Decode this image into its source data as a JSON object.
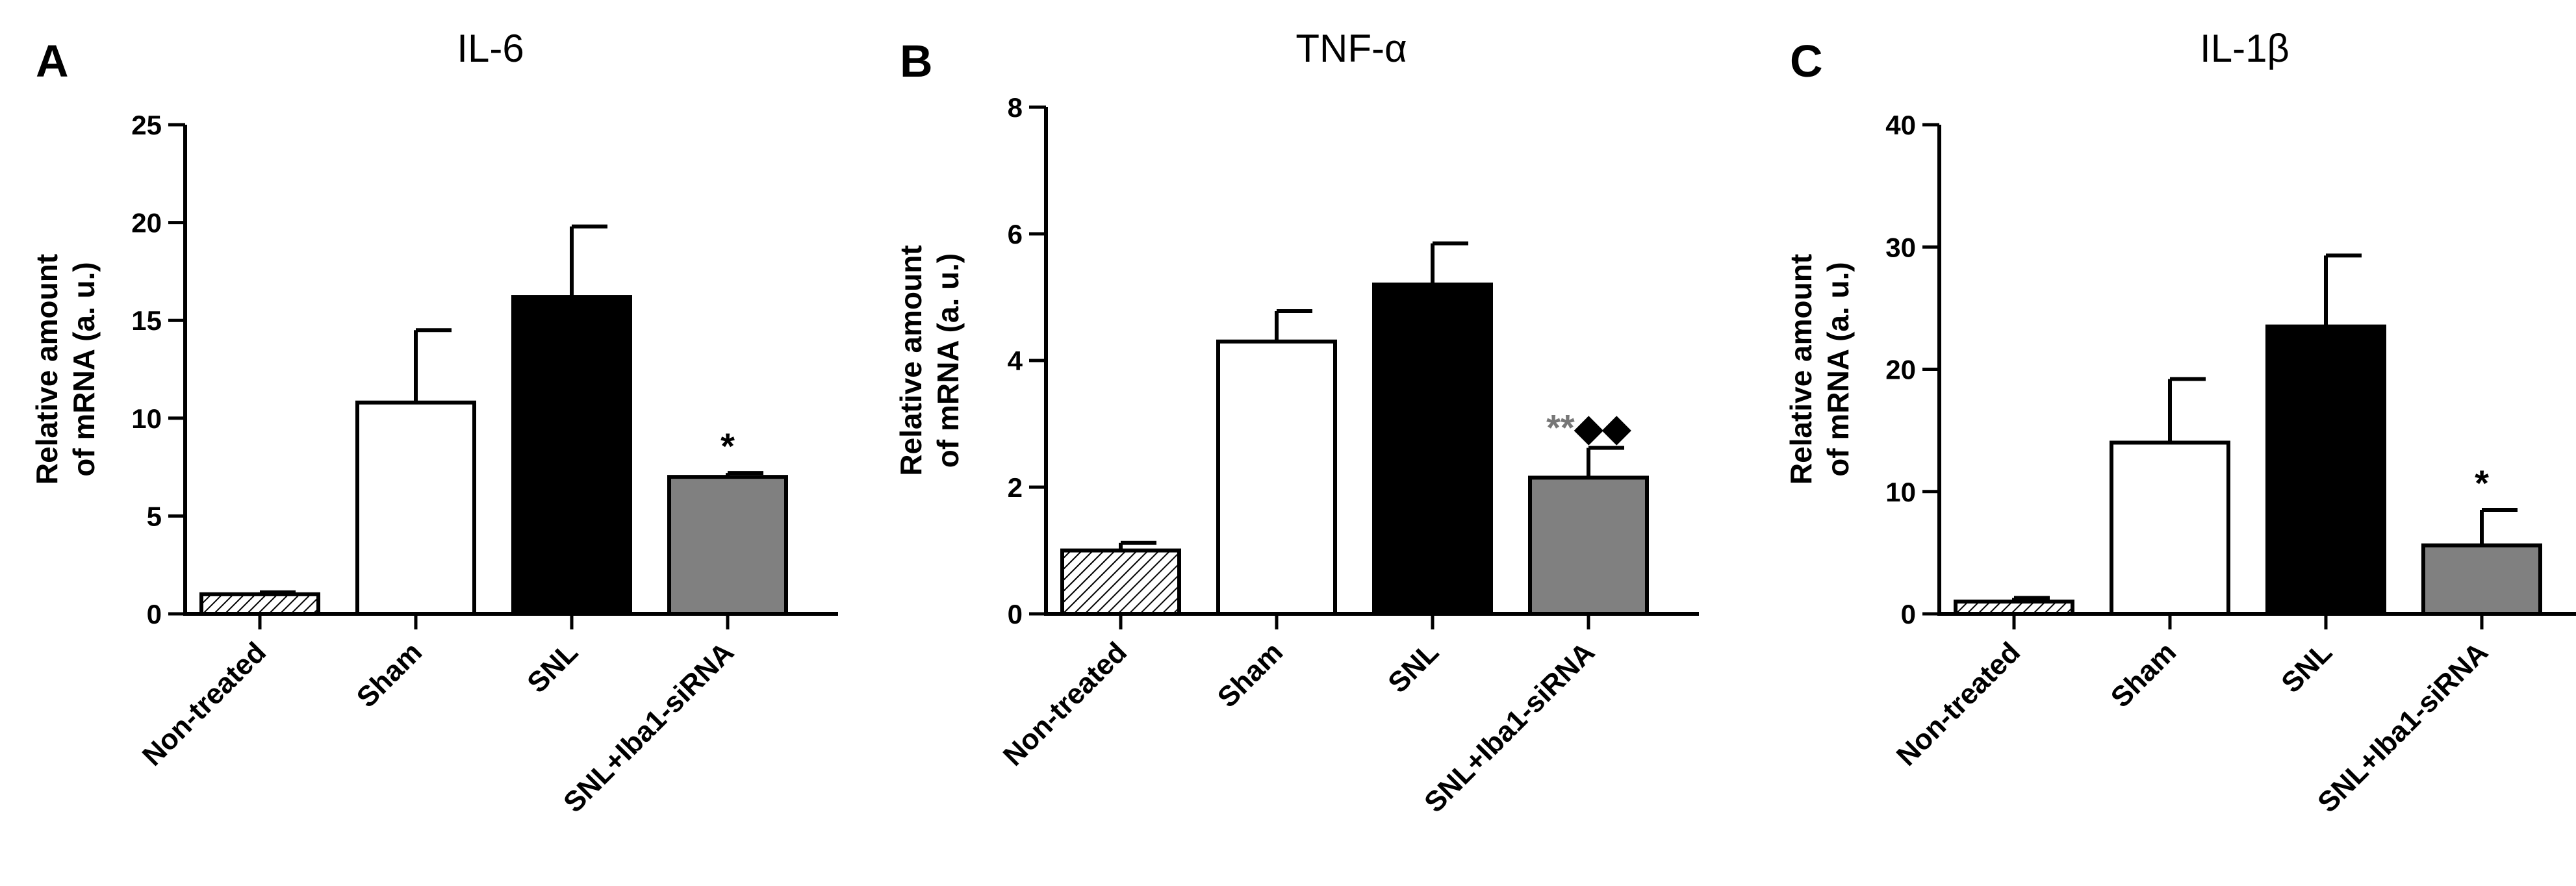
{
  "chart_data": [
    {
      "type": "bar",
      "panel_letter": "A",
      "title": "IL-6",
      "ylabel_line1": "Relative amount",
      "ylabel_line2": "of mRNA (a. u.)",
      "ylim": [
        0,
        25
      ],
      "yticks": [
        "0",
        "5",
        "10",
        "15",
        "20",
        "25"
      ],
      "categories": [
        "Non-treated",
        "Sham",
        "SNL",
        "SNL+Iba1-siRNA"
      ],
      "values": [
        1.0,
        10.8,
        16.2,
        7.0
      ],
      "errors": [
        0.1,
        3.7,
        3.6,
        0.2
      ],
      "fills": [
        "hatch",
        "#ffffff",
        "#000000",
        "#808080"
      ],
      "annotations": [
        {
          "category": "SNL+Iba1-siRNA",
          "text": "*",
          "style": "black"
        }
      ]
    },
    {
      "type": "bar",
      "panel_letter": "B",
      "title": "TNF-α",
      "ylabel_line1": "Relative amount",
      "ylabel_line2": "of mRNA (a. u.)",
      "ylim": [
        0,
        8
      ],
      "yticks": [
        "0",
        "2",
        "4",
        "6",
        "8"
      ],
      "categories": [
        "Non-treated",
        "Sham",
        "SNL",
        "SNL+Iba1-siRNA"
      ],
      "values": [
        1.0,
        4.3,
        5.2,
        2.15
      ],
      "errors": [
        0.12,
        0.48,
        0.65,
        0.47
      ],
      "fills": [
        "hatch",
        "#ffffff",
        "#000000",
        "#808080"
      ],
      "annotations": [
        {
          "category": "SNL+Iba1-siRNA",
          "text": "**",
          "style": "gray"
        },
        {
          "category": "SNL+Iba1-siRNA",
          "text": "◆◆",
          "style": "black"
        }
      ]
    },
    {
      "type": "bar",
      "panel_letter": "C",
      "title": "IL-1β",
      "ylabel_line1": "Relative amount",
      "ylabel_line2": "of mRNA (a. u.)",
      "ylim": [
        0,
        40
      ],
      "yticks": [
        "0",
        "10",
        "20",
        "30",
        "40"
      ],
      "categories": [
        "Non-treated",
        "Sham",
        "SNL",
        "SNL+Iba1-siRNA"
      ],
      "values": [
        1.0,
        14.0,
        23.5,
        5.6
      ],
      "errors": [
        0.3,
        5.2,
        5.8,
        2.9
      ],
      "fills": [
        "hatch",
        "#ffffff",
        "#000000",
        "#808080"
      ],
      "annotations": [
        {
          "category": "SNL+Iba1-siRNA",
          "text": "*",
          "style": "black"
        }
      ]
    }
  ]
}
